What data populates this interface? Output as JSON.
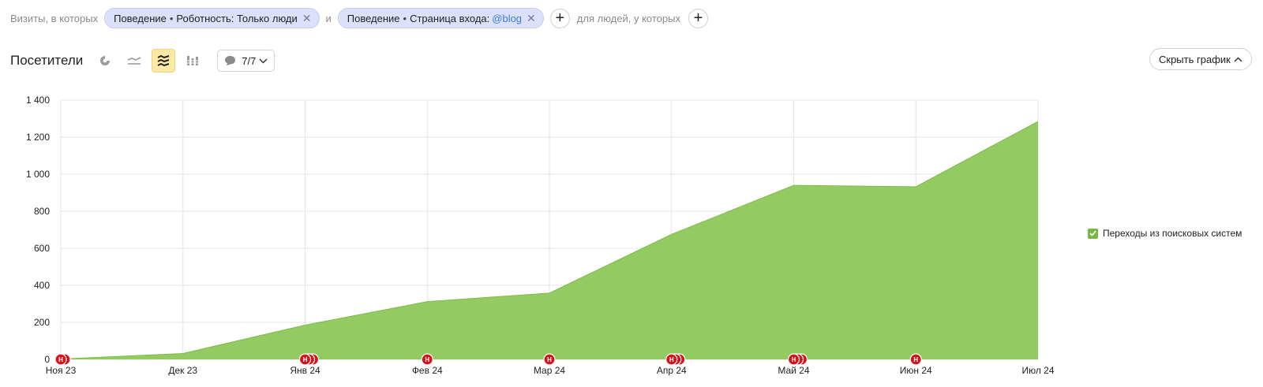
{
  "filters": {
    "prefix": "Визиты, в которых",
    "chip1": {
      "category": "Поведение",
      "label": "Роботность: Только люди"
    },
    "conj": "и",
    "chip2": {
      "category": "Поведение",
      "label": "Страница входа:",
      "value": "@blog"
    },
    "people_label": "для людей, у которых",
    "sep_glyph": "•",
    "close_glyph": "✕",
    "plus_glyph": "+"
  },
  "toolbar": {
    "title": "Посетители",
    "chart_types": [
      "pie-chart-icon",
      "line-chart-icon",
      "stacked-area-icon",
      "column-chart-icon"
    ],
    "active_chart_type": "stacked-area-icon",
    "annotations_count": "7/7",
    "hide_chart_label": "Скрыть график"
  },
  "chart_data": {
    "type": "area",
    "x": [
      "Ноя 23",
      "Дек 23",
      "Янв 24",
      "Фев 24",
      "Мар 24",
      "Апр 24",
      "Май 24",
      "Июн 24",
      "Июл 24"
    ],
    "series": [
      {
        "name": "Переходы из поисковых систем",
        "values": [
          2,
          32,
          185,
          312,
          358,
          675,
          940,
          932,
          1285
        ],
        "color": "#8dc75a"
      }
    ],
    "y_ticks": [
      "0",
      "200",
      "400",
      "600",
      "800",
      "1 000",
      "1 200",
      "1 400"
    ],
    "ylim": [
      0,
      1400
    ],
    "grid": true,
    "legend": "right",
    "annotations": [
      {
        "x_index": 0,
        "count": 2,
        "label": "Н"
      },
      {
        "x_index": 2,
        "count": 3,
        "label": "Н"
      },
      {
        "x_index": 3,
        "count": 1,
        "label": "Н"
      },
      {
        "x_index": 4,
        "count": 1,
        "label": "Н"
      },
      {
        "x_index": 5,
        "count": 3,
        "label": "Н"
      },
      {
        "x_index": 6,
        "count": 3,
        "label": "Н"
      },
      {
        "x_index": 7,
        "count": 1,
        "label": "Н"
      }
    ],
    "annotation_color": "#d6121b"
  }
}
